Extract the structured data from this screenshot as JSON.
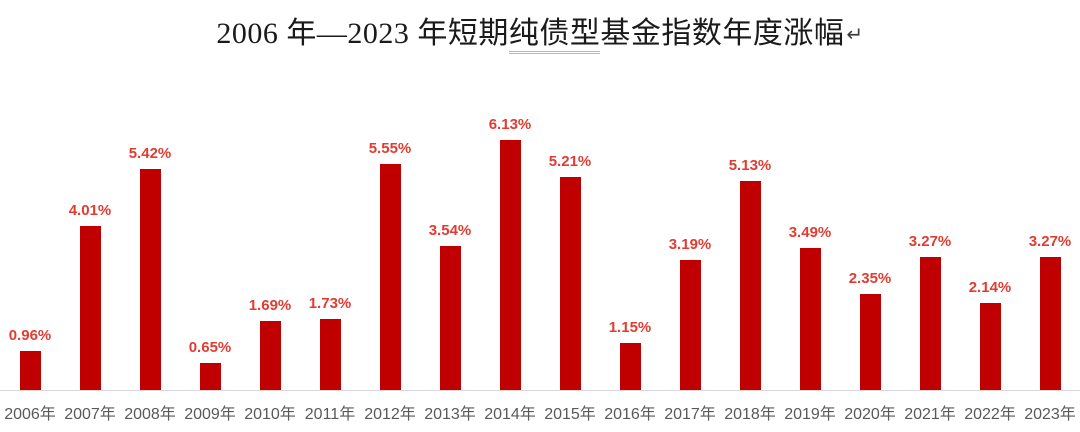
{
  "title": {
    "part1": "2006 年—2023 年短期",
    "underlined": "纯债型",
    "part2": "基金指数年度涨幅",
    "return_mark": "↵"
  },
  "chart_data": {
    "type": "bar",
    "title": "2006 年—2023 年短期纯债型基金指数年度涨幅",
    "categories": [
      "2006年",
      "2007年",
      "2008年",
      "2009年",
      "2010年",
      "2011年",
      "2012年",
      "2013年",
      "2014年",
      "2015年",
      "2016年",
      "2017年",
      "2018年",
      "2019年",
      "2020年",
      "2021年",
      "2022年",
      "2023年"
    ],
    "values": [
      0.96,
      4.01,
      5.42,
      0.65,
      1.69,
      1.73,
      5.55,
      3.54,
      6.13,
      5.21,
      1.15,
      3.19,
      5.13,
      3.49,
      2.35,
      3.27,
      2.14,
      3.27
    ],
    "labels": [
      "0.96%",
      "4.01%",
      "5.42%",
      "0.65%",
      "1.69%",
      "1.73%",
      "5.55%",
      "3.54%",
      "6.13%",
      "5.21%",
      "1.15%",
      "3.19%",
      "5.13%",
      "3.49%",
      "2.35%",
      "3.27%",
      "2.14%",
      "3.27%"
    ],
    "xlabel": "",
    "ylabel": "",
    "ylim": [
      0,
      7
    ],
    "grid": false,
    "legend": "none",
    "data_labels": "above-bars",
    "bar_color": "#c00000",
    "label_color": "#e03c31",
    "axis_line_color": "#d9d9d9",
    "tick_label_color": "#595959",
    "title_underline_color": "#9cc2e5"
  }
}
